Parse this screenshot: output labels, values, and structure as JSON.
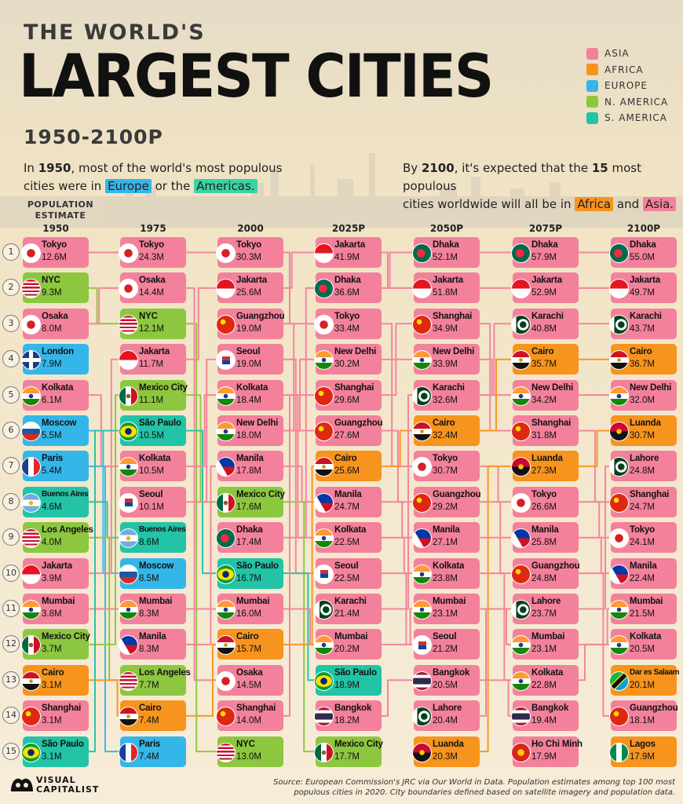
{
  "header": {
    "title_small": "THE WORLD'S",
    "title_big": "LARGEST CITIES",
    "years": "1950-2100P"
  },
  "colors": {
    "Asia": "#f3819b",
    "Africa": "#f7941d",
    "Europe": "#35b6e8",
    "N. America": "#8dc63f",
    "S. America": "#22c3a6"
  },
  "legend": [
    {
      "label": "ASIA",
      "color": "#f3819b"
    },
    {
      "label": "AFRICA",
      "color": "#f7941d"
    },
    {
      "label": "EUROPE",
      "color": "#35b6e8"
    },
    {
      "label": "N. AMERICA",
      "color": "#8dc63f"
    },
    {
      "label": "S. AMERICA",
      "color": "#22c3a6"
    }
  ],
  "intro_left": {
    "p1": "In ",
    "year": "1950",
    "p2": ", most of the world's most populous",
    "p3": "cities were in ",
    "hl1": "Europe",
    "p4": " or the ",
    "hl2": "Americas."
  },
  "intro_right": {
    "p1": "By ",
    "year": "2100",
    "p2": ", it's expected that the ",
    "n": "15",
    "p3": " most populous",
    "p4": "cities worldwide will all be in ",
    "hl1": "Africa",
    "p5": " and ",
    "hl2": "Asia."
  },
  "population_estimate_label": "POPULATION ESTIMATE",
  "chart_data": {
    "type": "table",
    "unit": "M",
    "columns": [
      "1950",
      "1975",
      "2000",
      "2025P",
      "2050P",
      "2075P",
      "2100P"
    ],
    "ranks": [
      "1",
      "2",
      "3",
      "4",
      "5",
      "6",
      "7",
      "8",
      "9",
      "10",
      "11",
      "12",
      "13",
      "14",
      "15"
    ],
    "data": [
      [
        {
          "city": "Tokyo",
          "pop": "12.6M",
          "region": "Asia",
          "flag": "japan"
        },
        {
          "city": "NYC",
          "pop": "9.3M",
          "region": "N. America",
          "flag": "usa"
        },
        {
          "city": "Osaka",
          "pop": "8.0M",
          "region": "Asia",
          "flag": "japan"
        },
        {
          "city": "London",
          "pop": "7.9M",
          "region": "Europe",
          "flag": "uk"
        },
        {
          "city": "Kolkata",
          "pop": "6.1M",
          "region": "Asia",
          "flag": "india"
        },
        {
          "city": "Moscow",
          "pop": "5.5M",
          "region": "Europe",
          "flag": "russia"
        },
        {
          "city": "Paris",
          "pop": "5.4M",
          "region": "Europe",
          "flag": "france"
        },
        {
          "city": "Buenos Aires",
          "pop": "4.6M",
          "region": "S. America",
          "flag": "argentina"
        },
        {
          "city": "Los Angeles",
          "pop": "4.0M",
          "region": "N. America",
          "flag": "usa"
        },
        {
          "city": "Jakarta",
          "pop": "3.9M",
          "region": "Asia",
          "flag": "indonesia"
        },
        {
          "city": "Mumbai",
          "pop": "3.8M",
          "region": "Asia",
          "flag": "india"
        },
        {
          "city": "Mexico City",
          "pop": "3.7M",
          "region": "N. America",
          "flag": "mexico"
        },
        {
          "city": "Cairo",
          "pop": "3.1M",
          "region": "Africa",
          "flag": "egypt"
        },
        {
          "city": "Shanghai",
          "pop": "3.1M",
          "region": "Asia",
          "flag": "china"
        },
        {
          "city": "São Paulo",
          "pop": "3.1M",
          "region": "S. America",
          "flag": "brazil"
        }
      ],
      [
        {
          "city": "Tokyo",
          "pop": "24.3M",
          "region": "Asia",
          "flag": "japan"
        },
        {
          "city": "Osaka",
          "pop": "14.4M",
          "region": "Asia",
          "flag": "japan"
        },
        {
          "city": "NYC",
          "pop": "12.1M",
          "region": "N. America",
          "flag": "usa"
        },
        {
          "city": "Jakarta",
          "pop": "11.7M",
          "region": "Asia",
          "flag": "indonesia"
        },
        {
          "city": "Mexico City",
          "pop": "11.1M",
          "region": "N. America",
          "flag": "mexico"
        },
        {
          "city": "São Paulo",
          "pop": "10.5M",
          "region": "S. America",
          "flag": "brazil"
        },
        {
          "city": "Kolkata",
          "pop": "10.5M",
          "region": "Asia",
          "flag": "india"
        },
        {
          "city": "Seoul",
          "pop": "10.1M",
          "region": "Asia",
          "flag": "korea"
        },
        {
          "city": "Buenos Aires",
          "pop": "8.6M",
          "region": "S. America",
          "flag": "argentina"
        },
        {
          "city": "Moscow",
          "pop": "8.5M",
          "region": "Europe",
          "flag": "russia"
        },
        {
          "city": "Mumbai",
          "pop": "8.3M",
          "region": "Asia",
          "flag": "india"
        },
        {
          "city": "Manila",
          "pop": "8.3M",
          "region": "Asia",
          "flag": "philippines"
        },
        {
          "city": "Los Angeles",
          "pop": "7.7M",
          "region": "N. America",
          "flag": "usa"
        },
        {
          "city": "Cairo",
          "pop": "7.4M",
          "region": "Africa",
          "flag": "egypt"
        },
        {
          "city": "Paris",
          "pop": "7.4M",
          "region": "Europe",
          "flag": "france"
        }
      ],
      [
        {
          "city": "Tokyo",
          "pop": "30.3M",
          "region": "Asia",
          "flag": "japan"
        },
        {
          "city": "Jakarta",
          "pop": "25.6M",
          "region": "Asia",
          "flag": "indonesia"
        },
        {
          "city": "Guangzhou",
          "pop": "19.0M",
          "region": "Asia",
          "flag": "china"
        },
        {
          "city": "Seoul",
          "pop": "19.0M",
          "region": "Asia",
          "flag": "korea"
        },
        {
          "city": "Kolkata",
          "pop": "18.4M",
          "region": "Asia",
          "flag": "india"
        },
        {
          "city": "New Delhi",
          "pop": "18.0M",
          "region": "Asia",
          "flag": "india"
        },
        {
          "city": "Manila",
          "pop": "17.8M",
          "region": "Asia",
          "flag": "philippines"
        },
        {
          "city": "Mexico City",
          "pop": "17.6M",
          "region": "N. America",
          "flag": "mexico"
        },
        {
          "city": "Dhaka",
          "pop": "17.4M",
          "region": "Asia",
          "flag": "bangladesh"
        },
        {
          "city": "São Paulo",
          "pop": "16.7M",
          "region": "S. America",
          "flag": "brazil"
        },
        {
          "city": "Mumbai",
          "pop": "16.0M",
          "region": "Asia",
          "flag": "india"
        },
        {
          "city": "Cairo",
          "pop": "15.7M",
          "region": "Africa",
          "flag": "egypt"
        },
        {
          "city": "Osaka",
          "pop": "14.5M",
          "region": "Asia",
          "flag": "japan"
        },
        {
          "city": "Shanghai",
          "pop": "14.0M",
          "region": "Asia",
          "flag": "china"
        },
        {
          "city": "NYC",
          "pop": "13.0M",
          "region": "N. America",
          "flag": "usa"
        }
      ],
      [
        {
          "city": "Jakarta",
          "pop": "41.9M",
          "region": "Asia",
          "flag": "indonesia"
        },
        {
          "city": "Dhaka",
          "pop": "36.6M",
          "region": "Asia",
          "flag": "bangladesh"
        },
        {
          "city": "Tokyo",
          "pop": "33.4M",
          "region": "Asia",
          "flag": "japan"
        },
        {
          "city": "New Delhi",
          "pop": "30.2M",
          "region": "Asia",
          "flag": "india"
        },
        {
          "city": "Shanghai",
          "pop": "29.6M",
          "region": "Asia",
          "flag": "china"
        },
        {
          "city": "Guangzhou",
          "pop": "27.6M",
          "region": "Asia",
          "flag": "china"
        },
        {
          "city": "Cairo",
          "pop": "25.6M",
          "region": "Africa",
          "flag": "egypt"
        },
        {
          "city": "Manila",
          "pop": "24.7M",
          "region": "Asia",
          "flag": "philippines"
        },
        {
          "city": "Kolkata",
          "pop": "22.5M",
          "region": "Asia",
          "flag": "india"
        },
        {
          "city": "Seoul",
          "pop": "22.5M",
          "region": "Asia",
          "flag": "korea"
        },
        {
          "city": "Karachi",
          "pop": "21.4M",
          "region": "Asia",
          "flag": "pakistan"
        },
        {
          "city": "Mumbai",
          "pop": "20.2M",
          "region": "Asia",
          "flag": "india"
        },
        {
          "city": "São Paulo",
          "pop": "18.9M",
          "region": "S. America",
          "flag": "brazil"
        },
        {
          "city": "Bangkok",
          "pop": "18.2M",
          "region": "Asia",
          "flag": "thailand"
        },
        {
          "city": "Mexico City",
          "pop": "17.7M",
          "region": "N. America",
          "flag": "mexico"
        }
      ],
      [
        {
          "city": "Dhaka",
          "pop": "52.1M",
          "region": "Asia",
          "flag": "bangladesh"
        },
        {
          "city": "Jakarta",
          "pop": "51.8M",
          "region": "Asia",
          "flag": "indonesia"
        },
        {
          "city": "Shanghai",
          "pop": "34.9M",
          "region": "Asia",
          "flag": "china"
        },
        {
          "city": "New Delhi",
          "pop": "33.9M",
          "region": "Asia",
          "flag": "india"
        },
        {
          "city": "Karachi",
          "pop": "32.6M",
          "region": "Asia",
          "flag": "pakistan"
        },
        {
          "city": "Cairo",
          "pop": "32.4M",
          "region": "Africa",
          "flag": "egypt"
        },
        {
          "city": "Tokyo",
          "pop": "30.7M",
          "region": "Asia",
          "flag": "japan"
        },
        {
          "city": "Guangzhou",
          "pop": "29.2M",
          "region": "Asia",
          "flag": "china"
        },
        {
          "city": "Manila",
          "pop": "27.1M",
          "region": "Asia",
          "flag": "philippines"
        },
        {
          "city": "Kolkata",
          "pop": "23.8M",
          "region": "Asia",
          "flag": "india"
        },
        {
          "city": "Mumbai",
          "pop": "23.1M",
          "region": "Asia",
          "flag": "india"
        },
        {
          "city": "Seoul",
          "pop": "21.2M",
          "region": "Asia",
          "flag": "korea"
        },
        {
          "city": "Bangkok",
          "pop": "20.5M",
          "region": "Asia",
          "flag": "thailand"
        },
        {
          "city": "Lahore",
          "pop": "20.4M",
          "region": "Asia",
          "flag": "pakistan"
        },
        {
          "city": "Luanda",
          "pop": "20.3M",
          "region": "Africa",
          "flag": "angola"
        }
      ],
      [
        {
          "city": "Dhaka",
          "pop": "57.9M",
          "region": "Asia",
          "flag": "bangladesh"
        },
        {
          "city": "Jakarta",
          "pop": "52.9M",
          "region": "Asia",
          "flag": "indonesia"
        },
        {
          "city": "Karachi",
          "pop": "40.8M",
          "region": "Asia",
          "flag": "pakistan"
        },
        {
          "city": "Cairo",
          "pop": "35.7M",
          "region": "Africa",
          "flag": "egypt"
        },
        {
          "city": "New Delhi",
          "pop": "34.2M",
          "region": "Asia",
          "flag": "india"
        },
        {
          "city": "Shanghai",
          "pop": "31.8M",
          "region": "Asia",
          "flag": "china"
        },
        {
          "city": "Luanda",
          "pop": "27.3M",
          "region": "Africa",
          "flag": "angola"
        },
        {
          "city": "Tokyo",
          "pop": "26.6M",
          "region": "Asia",
          "flag": "japan"
        },
        {
          "city": "Manila",
          "pop": "25.8M",
          "region": "Asia",
          "flag": "philippines"
        },
        {
          "city": "Guangzhou",
          "pop": "24.8M",
          "region": "Asia",
          "flag": "china"
        },
        {
          "city": "Lahore",
          "pop": "23.7M",
          "region": "Asia",
          "flag": "pakistan"
        },
        {
          "city": "Mumbai",
          "pop": "23.1M",
          "region": "Asia",
          "flag": "india"
        },
        {
          "city": "Kolkata",
          "pop": "22.8M",
          "region": "Asia",
          "flag": "india"
        },
        {
          "city": "Bangkok",
          "pop": "19.4M",
          "region": "Asia",
          "flag": "thailand"
        },
        {
          "city": "Ho Chi Minh",
          "pop": "17.9M",
          "region": "Asia",
          "flag": "vietnam"
        }
      ],
      [
        {
          "city": "Dhaka",
          "pop": "55.0M",
          "region": "Asia",
          "flag": "bangladesh"
        },
        {
          "city": "Jakarta",
          "pop": "49.7M",
          "region": "Asia",
          "flag": "indonesia"
        },
        {
          "city": "Karachi",
          "pop": "43.7M",
          "region": "Asia",
          "flag": "pakistan"
        },
        {
          "city": "Cairo",
          "pop": "36.7M",
          "region": "Africa",
          "flag": "egypt"
        },
        {
          "city": "New Delhi",
          "pop": "32.0M",
          "region": "Asia",
          "flag": "india"
        },
        {
          "city": "Luanda",
          "pop": "30.7M",
          "region": "Africa",
          "flag": "angola"
        },
        {
          "city": "Lahore",
          "pop": "24.8M",
          "region": "Asia",
          "flag": "pakistan"
        },
        {
          "city": "Shanghai",
          "pop": "24.7M",
          "region": "Asia",
          "flag": "china"
        },
        {
          "city": "Tokyo",
          "pop": "24.1M",
          "region": "Asia",
          "flag": "japan"
        },
        {
          "city": "Manila",
          "pop": "22.4M",
          "region": "Asia",
          "flag": "philippines"
        },
        {
          "city": "Mumbai",
          "pop": "21.5M",
          "region": "Asia",
          "flag": "india"
        },
        {
          "city": "Kolkata",
          "pop": "20.5M",
          "region": "Asia",
          "flag": "india"
        },
        {
          "city": "Dar es Salaam",
          "pop": "20.1M",
          "region": "Africa",
          "flag": "tanzania"
        },
        {
          "city": "Guangzhou",
          "pop": "18.1M",
          "region": "Asia",
          "flag": "china"
        },
        {
          "city": "Lagos",
          "pop": "17.9M",
          "region": "Africa",
          "flag": "nigeria"
        }
      ]
    ]
  },
  "logo": {
    "line1": "VISUAL",
    "line2": "CAPITALIST"
  },
  "source": {
    "line1": "Source: European Commission's JRC via Our World in Data. Population estimates among top 100 most",
    "line2": "populous cities in 2020. City boundaries defined based on satellite imagery and population data."
  }
}
